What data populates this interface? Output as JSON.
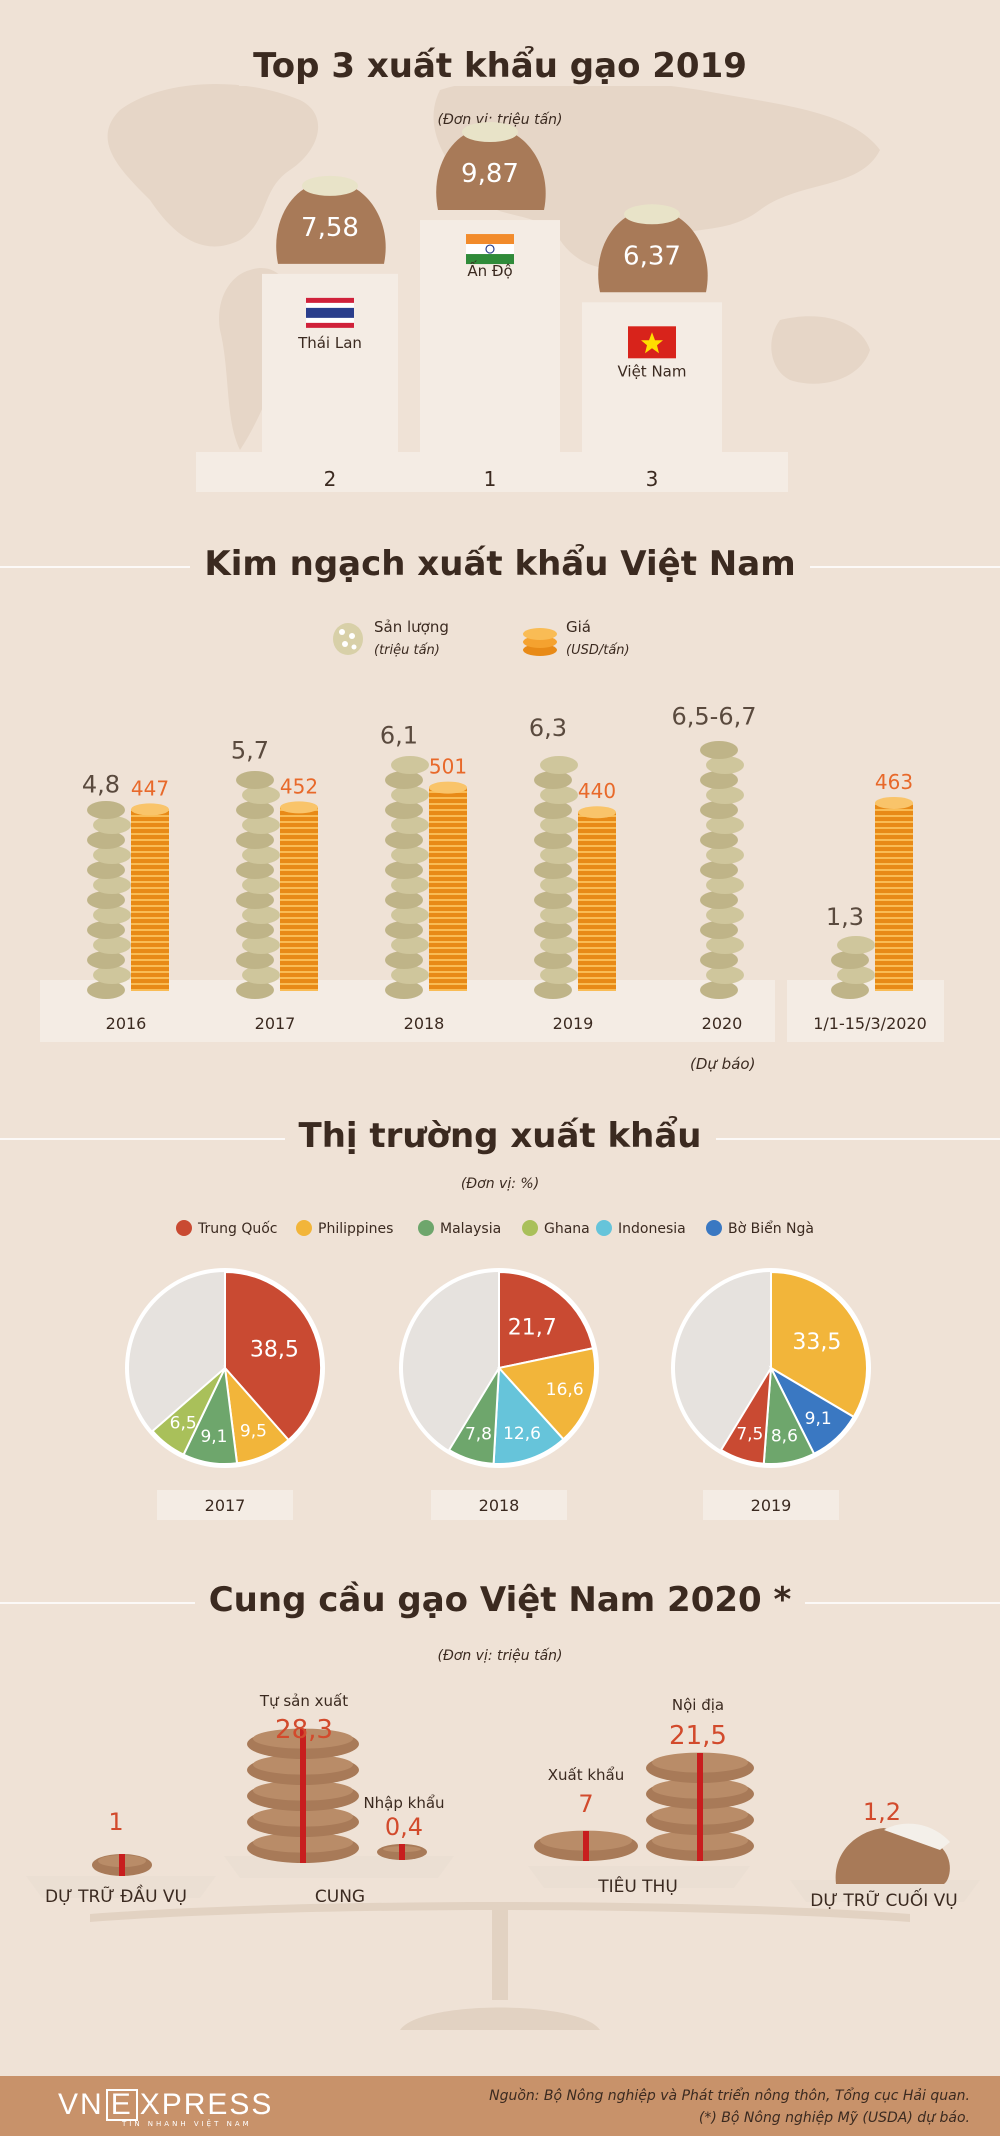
{
  "sections": {
    "top3_title": "Top 3 xuất khẩu gạo 2019",
    "top3_unit": "(Đơn vị: triệu tấn)",
    "kim_title": "Kim ngạch xuất khẩu Việt Nam",
    "market_title": "Thị trường xuất khẩu",
    "market_unit": "(Đơn vị: %)",
    "supply_title": "Cung cầu gạo Việt Nam 2020 *",
    "supply_unit": "(Đơn vị: triệu tấn)"
  },
  "legend_kim": {
    "volume_label": "Sản lượng",
    "volume_unit": "(triệu tấn)",
    "price_label": "Giá",
    "price_unit": "(USD/tấn)"
  },
  "forecast_note": "(Dự báo)",
  "footer": {
    "brand_vn": "VN",
    "brand_e": "E",
    "brand_xpress": "XPRESS",
    "tagline": "TIN NHANH VIỆT NAM",
    "source_line1": "Nguồn: Bộ Nông nghiệp và Phát triển nông thôn, Tổng cục Hải quan.",
    "source_line2": "(*) Bộ Nông nghiệp Mỹ (USDA) dự báo."
  },
  "colors": {
    "Trung Quốc": "#c94a32",
    "Philippines": "#f2b53a",
    "Malaysia": "#6ea66c",
    "Ghana": "#a9c05a",
    "Indonesia": "#66c4da",
    "Bờ Biển Ngà": "#3a78c2",
    "other": "#e6e2de",
    "accent_red": "#d24a2c",
    "coin": "#f5a22f"
  },
  "chart_data": [
    {
      "type": "bar",
      "title": "Top 3 xuất khẩu gạo 2019",
      "unit": "(Đơn vị: triệu tấn)",
      "categories": [
        "Thái Lan",
        "Ấn Độ",
        "Việt Nam"
      ],
      "values": [
        7.58,
        9.87,
        6.37
      ],
      "value_labels": [
        "7,58",
        "9,87",
        "6,37"
      ],
      "ranks": [
        "2",
        "1",
        "3"
      ]
    },
    {
      "type": "bar",
      "title": "Kim ngạch xuất khẩu Việt Nam",
      "categories": [
        "2016",
        "2017",
        "2018",
        "2019",
        "2020",
        "1/1-15/3/2020"
      ],
      "series": [
        {
          "name": "Sản lượng",
          "values": [
            4.8,
            5.7,
            6.1,
            6.3,
            6.6,
            1.3
          ],
          "labels": [
            "4,8",
            "5,7",
            "6,1",
            "6,3",
            "6,5-6,7",
            "1,3"
          ]
        },
        {
          "name": "Giá",
          "values": [
            447,
            452,
            501,
            440,
            null,
            463
          ],
          "labels": [
            "447",
            "452",
            "501",
            "440",
            "",
            "463"
          ]
        }
      ]
    },
    {
      "type": "pie",
      "title": "Thị trường xuất khẩu",
      "legend": [
        "Trung Quốc",
        "Philippines",
        "Malaysia",
        "Ghana",
        "Indonesia",
        "Bờ Biển Ngà"
      ],
      "pies": [
        {
          "year": "2017",
          "slices": [
            {
              "name": "Trung Quốc",
              "value": 38.5,
              "label": "38,5"
            },
            {
              "name": "Philippines",
              "value": 9.5,
              "label": "9,5"
            },
            {
              "name": "Malaysia",
              "value": 9.1,
              "label": "9,1"
            },
            {
              "name": "Ghana",
              "value": 6.5,
              "label": "6,5"
            }
          ]
        },
        {
          "year": "2018",
          "slices": [
            {
              "name": "Trung Quốc",
              "value": 21.7,
              "label": "21,7"
            },
            {
              "name": "Philippines",
              "value": 16.6,
              "label": "16,6"
            },
            {
              "name": "Indonesia",
              "value": 12.6,
              "label": "12,6"
            },
            {
              "name": "Malaysia",
              "value": 7.8,
              "label": "7,8"
            }
          ]
        },
        {
          "year": "2019",
          "slices": [
            {
              "name": "Philippines",
              "value": 33.5,
              "label": "33,5"
            },
            {
              "name": "Bờ Biển Ngà",
              "value": 9.1,
              "label": "9,1"
            },
            {
              "name": "Malaysia",
              "value": 8.6,
              "label": "8,6"
            },
            {
              "name": "Trung Quốc",
              "value": 7.5,
              "label": "7,5"
            }
          ]
        }
      ]
    },
    {
      "type": "bar",
      "title": "Cung cầu gạo Việt Nam 2020 *",
      "unit": "(Đơn vị: triệu tấn)",
      "groups": [
        {
          "name": "DỰ TRỮ ĐẦU VỤ",
          "items": [
            {
              "name": "",
              "value": 1,
              "label": "1"
            }
          ]
        },
        {
          "name": "CUNG",
          "items": [
            {
              "name": "Tự sản xuất",
              "value": 28.3,
              "label": "28,3"
            },
            {
              "name": "Nhập khẩu",
              "value": 0.4,
              "label": "0,4"
            }
          ]
        },
        {
          "name": "TIÊU THỤ",
          "items": [
            {
              "name": "Xuất khẩu",
              "value": 7,
              "label": "7"
            },
            {
              "name": "Nội địa",
              "value": 21.5,
              "label": "21,5"
            }
          ]
        },
        {
          "name": "DỰ TRỮ CUỐI VỤ",
          "items": [
            {
              "name": "",
              "value": 1.2,
              "label": "1,2"
            }
          ]
        }
      ]
    }
  ]
}
